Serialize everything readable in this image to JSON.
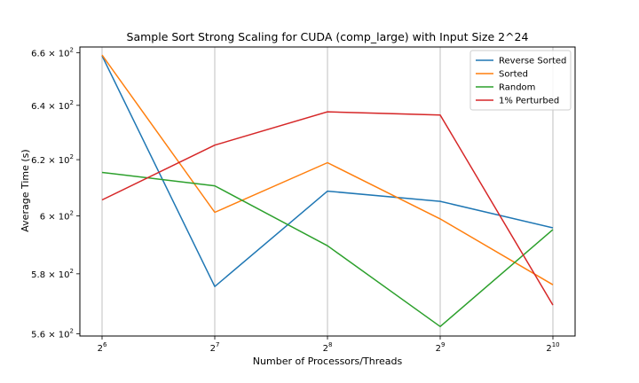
{
  "chart_data": {
    "type": "line",
    "title": "Sample Sort Strong Scaling for CUDA (comp_large) with Input Size 2^24",
    "xlabel": "Number of Processors/Threads",
    "ylabel": "Average Time (s)",
    "x_scale": "log2",
    "y_scale": "log",
    "x": [
      64,
      128,
      256,
      512,
      1024
    ],
    "xticks": [
      {
        "base": "2",
        "exp": "6"
      },
      {
        "base": "2",
        "exp": "7"
      },
      {
        "base": "2",
        "exp": "8"
      },
      {
        "base": "2",
        "exp": "9"
      },
      {
        "base": "2",
        "exp": "10"
      }
    ],
    "yticks": [
      {
        "value": 560,
        "mant": "5.6",
        "exp": "2"
      },
      {
        "value": 580,
        "mant": "5.8",
        "exp": "2"
      },
      {
        "value": 600,
        "mant": "6",
        "exp": "2"
      },
      {
        "value": 620,
        "mant": "6.2",
        "exp": "2"
      },
      {
        "value": 640,
        "mant": "6.4",
        "exp": "2"
      },
      {
        "value": 660,
        "mant": "6.6",
        "exp": "2"
      }
    ],
    "ylim": [
      559.3,
      662.2
    ],
    "grid": "x-only",
    "legend_position": "top-right",
    "series": [
      {
        "name": "Reverse Sorted",
        "color": "#1f77b4",
        "values": [
          658.8,
          575.7,
          608.7,
          605.1,
          595.8
        ]
      },
      {
        "name": "Sorted",
        "color": "#ff7f0e",
        "values": [
          659.1,
          601.2,
          618.9,
          598.9,
          576.3
        ]
      },
      {
        "name": "Random",
        "color": "#2ca02c",
        "values": [
          615.4,
          610.6,
          589.6,
          562.4,
          595.2
        ]
      },
      {
        "name": "1% Perturbed",
        "color": "#d62728",
        "values": [
          605.6,
          625.3,
          637.6,
          636.4,
          569.5
        ]
      }
    ]
  }
}
